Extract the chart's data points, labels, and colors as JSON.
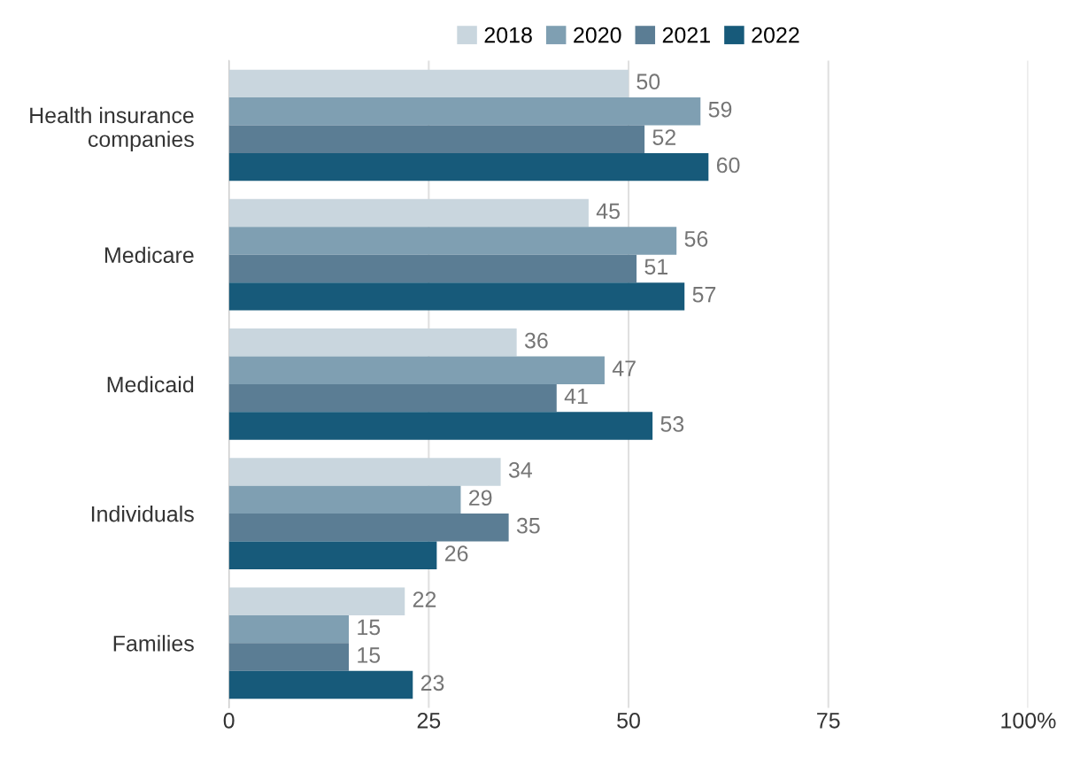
{
  "chart_data": {
    "type": "bar",
    "orientation": "horizontal",
    "categories": [
      "Health insurance companies",
      "Medicare",
      "Medicaid",
      "Individuals",
      "Families"
    ],
    "series": [
      {
        "name": "2018",
        "color": "#c9d6de",
        "values": [
          50,
          45,
          36,
          34,
          22
        ]
      },
      {
        "name": "2020",
        "color": "#7f9fb2",
        "values": [
          59,
          56,
          47,
          29,
          15
        ]
      },
      {
        "name": "2021",
        "color": "#5b7d94",
        "values": [
          52,
          51,
          41,
          35,
          15
        ]
      },
      {
        "name": "2022",
        "color": "#175a7a",
        "values": [
          60,
          57,
          53,
          26,
          23
        ]
      }
    ],
    "xlim": [
      0,
      100
    ],
    "xticks": [
      0,
      25,
      50,
      75,
      {
        "value": 100,
        "label": "100%"
      }
    ],
    "grid": "x",
    "legend": "top",
    "data_labels": true
  }
}
